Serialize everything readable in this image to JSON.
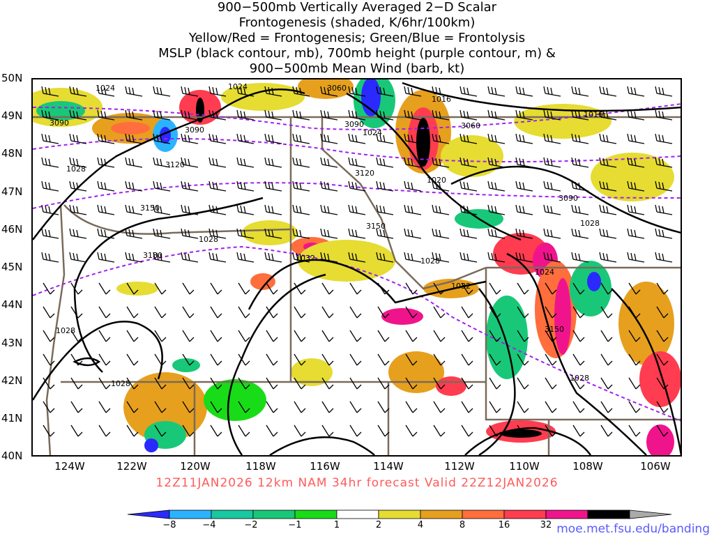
{
  "header": {
    "line1": "900−500mb Vertically Averaged 2−D Scalar",
    "line2": "Frontogenesis (shaded, K/6hr/100km)",
    "line3": "Yellow/Red = Frontogenesis;  Green/Blue = Frontolysis",
    "line4": "MSLP (black contour, mb), 700mb height (purple contour, m) &",
    "line5": "900−500mb Mean Wind (barb, kt)"
  },
  "axes": {
    "lat_labels": [
      "50N",
      "49N",
      "48N",
      "47N",
      "46N",
      "45N",
      "44N",
      "43N",
      "42N",
      "41N",
      "40N"
    ],
    "lon_labels": [
      "124W",
      "122W",
      "120W",
      "118W",
      "116W",
      "114W",
      "112W",
      "110W",
      "108W",
      "106W"
    ]
  },
  "contour_labels": {
    "mslp": [
      "1024",
      "1024",
      "1016",
      "1016",
      "1024",
      "1028",
      "1020",
      "1028",
      "1032",
      "1028",
      "1024",
      "1028",
      "1032",
      "1028",
      "1028",
      "1028"
    ],
    "height_700mb": [
      "3060",
      "3090",
      "3090",
      "3090",
      "3060",
      "3120",
      "3120",
      "3150",
      "3090",
      "3150",
      "3180",
      "3150"
    ]
  },
  "valid_line": "12Z11JAN2026  12km NAM 34hr forecast Valid 22Z12JAN2026",
  "colorbar": {
    "labels": [
      "−8",
      "−4",
      "−2",
      "−1",
      "1",
      "2",
      "4",
      "8",
      "16",
      "32"
    ],
    "colors": [
      "#2a2aff",
      "#2ab4ff",
      "#18c8a0",
      "#18c878",
      "#18dc18",
      "#ffffff",
      "#e6dc32",
      "#e6a01e",
      "#ff6e3c",
      "#ff3c50",
      "#f0148c",
      "#000000",
      "#aaaaaa"
    ]
  },
  "credit": "moe.met.fsu.edu/banding"
}
